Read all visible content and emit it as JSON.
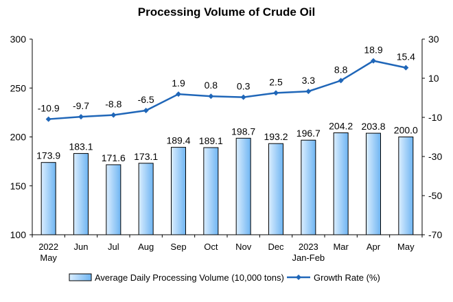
{
  "chart_data": {
    "type": "bar",
    "title": "Processing Volume of Crude Oil",
    "categories": [
      [
        "2022",
        "May"
      ],
      [
        "Jun"
      ],
      [
        "Jul"
      ],
      [
        "Aug"
      ],
      [
        "Sep"
      ],
      [
        "Oct"
      ],
      [
        "Nov"
      ],
      [
        "Dec"
      ],
      [
        "2023",
        "Jan-Feb"
      ],
      [
        "Mar"
      ],
      [
        "Apr"
      ],
      [
        "May"
      ]
    ],
    "series": [
      {
        "name": "Average Daily Processing Volume (10,000 tons)",
        "type": "bar",
        "axis": "left",
        "values": [
          173.9,
          183.1,
          171.6,
          173.1,
          189.4,
          189.1,
          198.7,
          193.2,
          196.7,
          204.2,
          203.8,
          200.0
        ],
        "labels": [
          "173.9",
          "183.1",
          "171.6",
          "173.1",
          "189.4",
          "189.1",
          "198.7",
          "193.2",
          "196.7",
          "204.2",
          "203.8",
          "200.0"
        ]
      },
      {
        "name": "Growth Rate (%)",
        "type": "line",
        "axis": "right",
        "values": [
          -10.9,
          -9.7,
          -8.8,
          -6.5,
          1.9,
          0.8,
          0.3,
          2.5,
          3.3,
          8.8,
          18.9,
          15.4
        ],
        "labels": [
          "-10.9",
          "-9.7",
          "-8.8",
          "-6.5",
          "1.9",
          "0.8",
          "0.3",
          "2.5",
          "3.3",
          "8.8",
          "18.9",
          "15.4"
        ]
      }
    ],
    "y_left": {
      "range": [
        100,
        300
      ],
      "ticks": [
        "100",
        "150",
        "200",
        "250",
        "300"
      ],
      "tick_values": [
        100,
        150,
        200,
        250,
        300
      ]
    },
    "y_right": {
      "range": [
        -70,
        30
      ],
      "ticks": [
        "-70",
        "-50",
        "-30",
        "-10",
        "10",
        "30"
      ],
      "tick_values": [
        -70,
        -50,
        -30,
        -10,
        10,
        30
      ]
    },
    "grid": false,
    "legend_position": "bottom",
    "colors": {
      "bar_fill_light": "#dbeeff",
      "bar_fill_dark": "#6fb5f2",
      "bar_stroke": "#000000",
      "line": "#1f66b8",
      "axis": "#000000"
    }
  }
}
